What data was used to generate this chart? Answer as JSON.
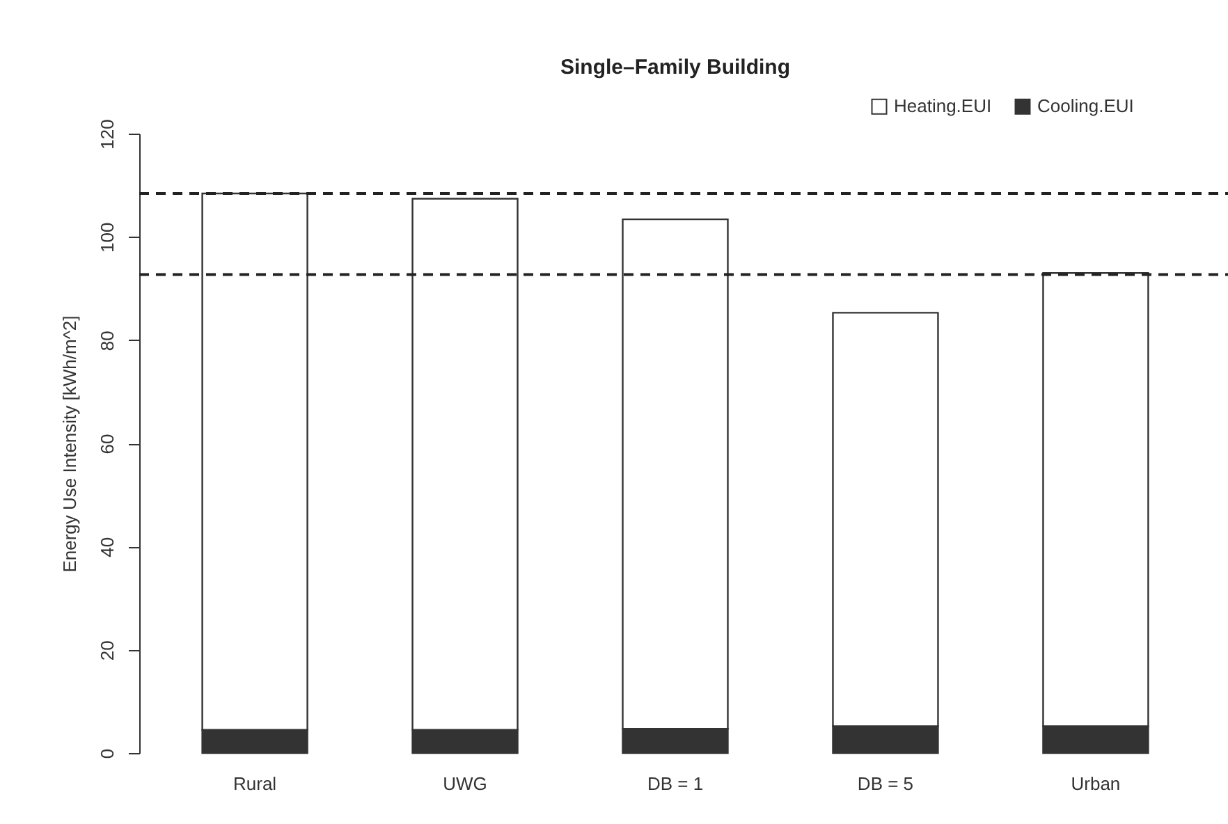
{
  "chart_data": {
    "type": "bar",
    "title": "Single–Family Building",
    "ylabel": "Energy Use Intensity [kWh/m^2]",
    "categories": [
      "Rural",
      "UWG",
      "DB = 1",
      "DB = 5",
      "Urban"
    ],
    "stacked": true,
    "series": [
      {
        "name": "Cooling.EUI",
        "color": "#333333",
        "values": [
          4.5,
          4.5,
          4.7,
          5.2,
          5.2
        ]
      },
      {
        "name": "Heating.EUI",
        "color": "#ffffff",
        "values": [
          103.9,
          102.9,
          98.7,
          80.1,
          87.8
        ]
      }
    ],
    "ylim": [
      0,
      120
    ],
    "yticks": [
      0,
      20,
      40,
      60,
      80,
      100,
      120
    ],
    "grid": false,
    "legend": "top right",
    "ref_lines": [
      {
        "axis": "y",
        "value": 108.4,
        "line_style": "dashed"
      },
      {
        "axis": "y",
        "value": 92.7,
        "line_style": "dashed"
      }
    ]
  }
}
